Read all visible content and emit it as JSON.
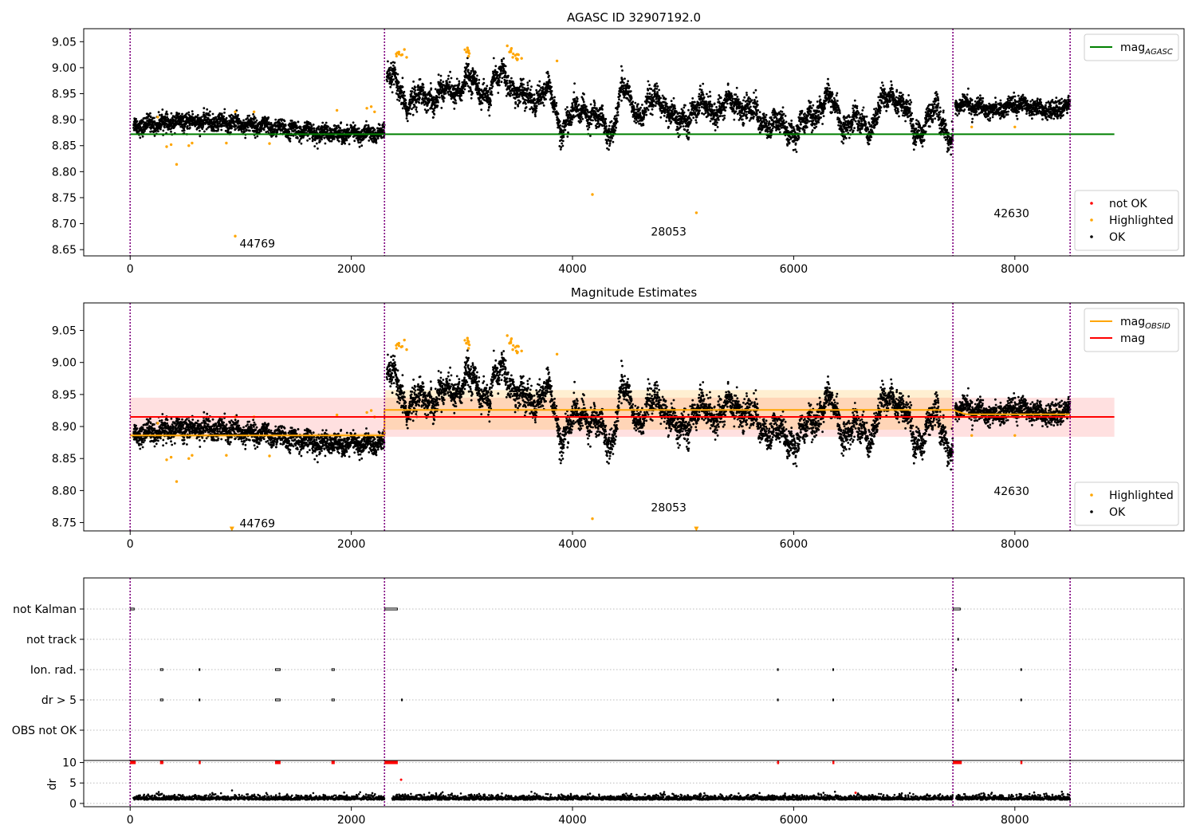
{
  "chart_data": [
    {
      "type": "scatter",
      "title": "AGASC ID 32907192.0",
      "xlim": [
        -420,
        9530
      ],
      "ylim": [
        8.638,
        9.075
      ],
      "xticks": [
        0,
        2000,
        4000,
        6000,
        8000
      ],
      "yticks": [
        8.65,
        8.7,
        8.75,
        8.8,
        8.85,
        8.9,
        8.95,
        9.0,
        9.05
      ],
      "ytick_labels": [
        "8.65",
        "8.70",
        "8.75",
        "8.80",
        "8.85",
        "8.90",
        "8.95",
        "9.00",
        "9.05"
      ],
      "grid": false,
      "obsid_boundaries": [
        0,
        2300,
        7440,
        8500
      ],
      "obsid_labels": [
        {
          "text": "44769",
          "x": 1150,
          "y": 8.662
        },
        {
          "text": "28053",
          "x": 4870,
          "y": 8.685
        },
        {
          "text": "42630",
          "x": 7970,
          "y": 8.72
        }
      ],
      "lines": [
        {
          "name": "mag",
          "sub": "AGASC",
          "color": "#008000",
          "x": [
            0,
            8900
          ],
          "y": [
            8.872,
            8.872
          ]
        }
      ],
      "legend_lines": {
        "position": "upper right",
        "entries": [
          {
            "name": "mag",
            "sub": "AGASC",
            "color": "#008000"
          }
        ]
      },
      "legend_points": {
        "position": "lower right",
        "entries": [
          {
            "name": "not OK",
            "color": "#ff0000"
          },
          {
            "name": "Highlighted",
            "color": "#ffa500"
          },
          {
            "name": "OK",
            "color": "#000000"
          }
        ]
      },
      "segments": [
        {
          "x0": 30,
          "x1": 2300,
          "base": 8.884,
          "amp": 0.006,
          "noise": 0.008,
          "waves": [
            [
              0.012,
              0.8,
              0.3
            ]
          ]
        },
        {
          "x0": 2320,
          "x1": 7440,
          "base": 8.927,
          "amp": 0.03,
          "noise": 0.011,
          "keys": [
            [
              2330,
              8.985
            ],
            [
              2500,
              8.935
            ],
            [
              2700,
              8.945
            ],
            [
              2900,
              8.955
            ],
            [
              3050,
              8.975
            ],
            [
              3250,
              8.948
            ],
            [
              3380,
              8.995
            ],
            [
              3520,
              8.94
            ],
            [
              3800,
              8.95
            ],
            [
              3900,
              8.885
            ],
            [
              4100,
              8.925
            ],
            [
              4350,
              8.875
            ],
            [
              4450,
              8.96
            ],
            [
              4600,
              8.91
            ],
            [
              4800,
              8.945
            ],
            [
              4950,
              8.885
            ],
            [
              5100,
              8.925
            ],
            [
              5300,
              8.92
            ],
            [
              5500,
              8.935
            ],
            [
              5700,
              8.9
            ],
            [
              5900,
              8.885
            ],
            [
              6050,
              8.88
            ],
            [
              6300,
              8.94
            ],
            [
              6450,
              8.895
            ],
            [
              6700,
              8.89
            ],
            [
              6900,
              8.96
            ],
            [
              7100,
              8.875
            ],
            [
              7300,
              8.915
            ],
            [
              7440,
              8.86
            ]
          ]
        },
        {
          "x0": 7460,
          "x1": 8500,
          "base": 8.924,
          "amp": 0.006,
          "noise": 0.008,
          "waves": [
            [
              0.006,
              2.0,
              0.7
            ]
          ]
        }
      ],
      "highlighted": {
        "color": "#ffa500",
        "points": [
          [
            950,
            8.676
          ],
          [
            420,
            8.814
          ],
          [
            4180,
            8.756
          ],
          [
            5120,
            8.721
          ],
          [
            330,
            8.848
          ],
          [
            370,
            8.852
          ],
          [
            530,
            8.85
          ],
          [
            560,
            8.855
          ],
          [
            870,
            8.855
          ],
          [
            1260,
            8.854
          ],
          [
            2430,
            9.03
          ],
          [
            2460,
            9.025
          ],
          [
            2480,
            9.035
          ],
          [
            2500,
            9.02
          ],
          [
            3040,
            9.03
          ],
          [
            3060,
            9.022
          ],
          [
            3050,
            9.038
          ],
          [
            3410,
            9.042
          ],
          [
            3430,
            9.03
          ],
          [
            3460,
            9.02
          ],
          [
            3500,
            9.015
          ],
          [
            3540,
            9.018
          ],
          [
            3860,
            9.013
          ],
          [
            1870,
            8.918
          ],
          [
            2140,
            8.922
          ],
          [
            2180,
            8.925
          ],
          [
            2210,
            8.915
          ],
          [
            1120,
            8.915
          ],
          [
            7610,
            8.886
          ],
          [
            8000,
            8.886
          ],
          [
            950,
            8.915
          ],
          [
            250,
            8.905
          ]
        ]
      }
    },
    {
      "type": "scatter",
      "title": "Magnitude Estimates",
      "xlim": [
        -420,
        9530
      ],
      "ylim": [
        8.737,
        9.093
      ],
      "xticks": [
        0,
        2000,
        4000,
        6000,
        8000
      ],
      "yticks": [
        8.75,
        8.8,
        8.85,
        8.9,
        8.95,
        9.0,
        9.05
      ],
      "ytick_labels": [
        "8.75",
        "8.80",
        "8.85",
        "8.90",
        "8.95",
        "9.00",
        "9.05"
      ],
      "grid": false,
      "obsid_boundaries": [
        0,
        2300,
        7440,
        8500
      ],
      "obsid_labels": [
        {
          "text": "44769",
          "x": 1150,
          "y": 8.749
        },
        {
          "text": "28053",
          "x": 4870,
          "y": 8.774
        },
        {
          "text": "42630",
          "x": 7970,
          "y": 8.799
        }
      ],
      "band": {
        "color": "#ff0000",
        "opacity": 0.12,
        "x": [
          0,
          8900
        ],
        "y": [
          8.884,
          8.945
        ]
      },
      "obsid_bands": [
        {
          "x": [
            2300,
            7440
          ],
          "y": [
            8.895,
            8.957
          ]
        },
        {
          "x": [
            0,
            2300
          ],
          "y": [
            8.88,
            8.89
          ]
        },
        {
          "x": [
            7440,
            8500
          ],
          "y": [
            8.912,
            8.928
          ]
        }
      ],
      "lines": [
        {
          "name": "mag",
          "sub": "OBSID",
          "color": "#ffa500",
          "x": [
            0,
            2300,
            2300,
            7440,
            7560,
            8500
          ],
          "y": [
            8.886,
            8.886,
            8.926,
            8.926,
            8.919,
            8.919
          ]
        },
        {
          "name": "mag",
          "color": "#ff0000",
          "x": [
            0,
            8900
          ],
          "y": [
            8.915,
            8.915
          ]
        }
      ],
      "legend_lines": {
        "position": "upper right",
        "entries": [
          {
            "name": "mag",
            "sub": "OBSID",
            "color": "#ffa500"
          },
          {
            "name": "mag",
            "color": "#ff0000"
          }
        ]
      },
      "legend_points": {
        "position": "lower right",
        "entries": [
          {
            "name": "Highlighted",
            "color": "#ffa500"
          },
          {
            "name": "OK",
            "color": "#000000"
          }
        ]
      },
      "offscale_markers": [
        [
          920,
          8.74
        ],
        [
          5120,
          8.74
        ]
      ]
    },
    {
      "type": "scatter",
      "xlim": [
        -420,
        9530
      ],
      "flag_rows": [
        "not Kalman",
        "not track",
        "Ion. rad.",
        "dr > 5",
        "OBS not OK"
      ],
      "flag_points": {
        "not Kalman": [
          [
            0,
            40
          ],
          [
            2300,
            2420
          ],
          [
            7440,
            7510
          ]
        ],
        "not track": [
          [
            7480,
            7490
          ]
        ],
        "Ion. rad.": [
          [
            270,
            300
          ],
          [
            620,
            625
          ],
          [
            1310,
            1360
          ],
          [
            1820,
            1850
          ],
          [
            5850,
            5855
          ],
          [
            6350,
            6355
          ],
          [
            7460,
            7465
          ],
          [
            8050,
            8055
          ]
        ],
        "dr > 5": [
          [
            270,
            300
          ],
          [
            620,
            625
          ],
          [
            1310,
            1360
          ],
          [
            1820,
            1850
          ],
          [
            2450,
            2455
          ],
          [
            5850,
            5855
          ],
          [
            6350,
            6355
          ],
          [
            7480,
            7485
          ],
          [
            8050,
            8055
          ]
        ],
        "OBS not OK": []
      },
      "dr_panel": {
        "ylabel": "dr",
        "yticks": [
          0,
          5,
          10
        ],
        "ylim": [
          -0.8,
          10.5
        ],
        "xticks": [
          0,
          2000,
          4000,
          6000,
          8000
        ],
        "red_at_10": [
          [
            0,
            50
          ],
          [
            270,
            300
          ],
          [
            620,
            625
          ],
          [
            1310,
            1360
          ],
          [
            1820,
            1850
          ],
          [
            2300,
            2420
          ],
          [
            5850,
            5855
          ],
          [
            6350,
            6355
          ],
          [
            7440,
            7520
          ],
          [
            8050,
            8055
          ]
        ],
        "extra_red": [
          [
            2450,
            5.8
          ],
          [
            6560,
            2.6
          ]
        ],
        "segments": [
          [
            30,
            2300
          ],
          [
            2370,
            7440
          ],
          [
            7470,
            8500
          ]
        ]
      }
    }
  ]
}
